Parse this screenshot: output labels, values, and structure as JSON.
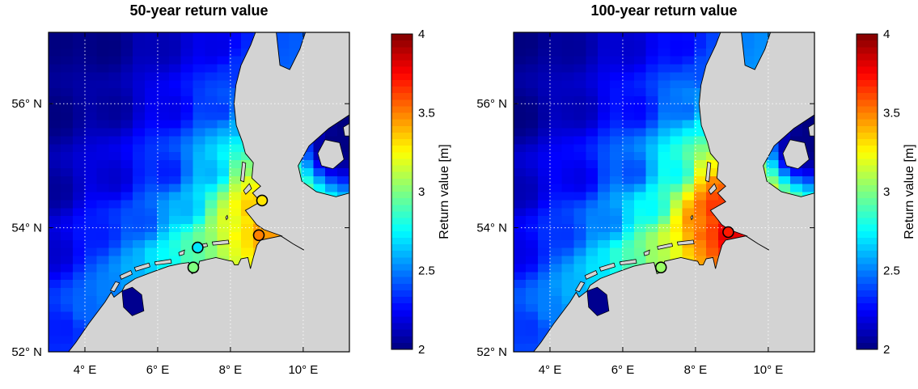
{
  "style": {
    "background": "#ffffff",
    "land_color": "#d3d3d3",
    "coast_color": "#000000",
    "gridline_color": "#ffffff",
    "lake_color": "#00008f",
    "colormap": "jet"
  },
  "chart_data": [
    {
      "type": "heatmap",
      "title": "50-year return value",
      "lon_range": [
        3.0,
        11.27
      ],
      "lat_range": [
        52.0,
        57.15
      ],
      "x_ticks": [
        {
          "lon": 4,
          "label": "4° E"
        },
        {
          "lon": 6,
          "label": "6° E"
        },
        {
          "lon": 8,
          "label": "8° E"
        },
        {
          "lon": 10,
          "label": "10° E"
        }
      ],
      "y_ticks": [
        {
          "lat": 56,
          "label": "56° N"
        },
        {
          "lat": 54,
          "label": "54° N"
        },
        {
          "lat": 52,
          "label": "52° N"
        }
      ],
      "colorbar": {
        "label": "Return value [m]",
        "min": 2,
        "max": 4,
        "tick_values": [
          4,
          3.5,
          3,
          2.5,
          2
        ],
        "tick_labels": [
          "4",
          "3.5",
          "3",
          "2.5",
          "2"
        ]
      },
      "field_points": [
        [
          3.2,
          57.0,
          2.0
        ],
        [
          4.6,
          56.9,
          2.0
        ],
        [
          6.2,
          56.9,
          2.1
        ],
        [
          7.6,
          56.9,
          2.2
        ],
        [
          3.2,
          55.8,
          2.0
        ],
        [
          4.8,
          55.9,
          2.05
        ],
        [
          6.4,
          55.9,
          2.2
        ],
        [
          7.7,
          55.9,
          2.35
        ],
        [
          3.2,
          54.6,
          2.05
        ],
        [
          4.8,
          54.8,
          2.15
        ],
        [
          6.3,
          54.9,
          2.3
        ],
        [
          7.5,
          54.9,
          2.6
        ],
        [
          3.2,
          53.6,
          2.15
        ],
        [
          4.4,
          53.9,
          2.3
        ],
        [
          5.6,
          54.1,
          2.4
        ],
        [
          6.8,
          54.3,
          2.6
        ],
        [
          3.4,
          52.4,
          2.3
        ],
        [
          4.0,
          52.7,
          2.45
        ],
        [
          4.7,
          53.0,
          2.5
        ],
        [
          5.4,
          53.3,
          2.6
        ],
        [
          6.2,
          53.5,
          2.75
        ],
        [
          6.9,
          53.6,
          2.9
        ],
        [
          7.4,
          53.7,
          3.0
        ],
        [
          7.9,
          53.8,
          3.15
        ],
        [
          8.3,
          53.85,
          3.3
        ],
        [
          8.75,
          53.9,
          3.45
        ],
        [
          9.2,
          53.9,
          3.45
        ],
        [
          8.1,
          54.1,
          3.2
        ],
        [
          8.5,
          54.3,
          3.35
        ],
        [
          8.7,
          54.5,
          3.35
        ],
        [
          8.6,
          54.75,
          3.2
        ],
        [
          8.5,
          55.0,
          3.0
        ],
        [
          8.35,
          55.3,
          2.8
        ],
        [
          8.2,
          55.6,
          2.6
        ],
        [
          8.1,
          56.0,
          2.45
        ],
        [
          8.2,
          56.5,
          2.35
        ],
        [
          10.9,
          55.3,
          2.0
        ],
        [
          11.2,
          55.7,
          2.0
        ]
      ],
      "markers": [
        {
          "lon": 8.87,
          "lat": 54.44,
          "value": 3.3
        },
        {
          "lon": 8.78,
          "lat": 53.88,
          "value": 3.5
        },
        {
          "lon": 7.1,
          "lat": 53.68,
          "value": 2.7
        },
        {
          "lon": 6.98,
          "lat": 53.36,
          "value": 3.0
        }
      ]
    },
    {
      "type": "heatmap",
      "title": "100-year return value",
      "lon_range": [
        3.0,
        11.27
      ],
      "lat_range": [
        52.0,
        57.15
      ],
      "x_ticks": [
        {
          "lon": 4,
          "label": "4° E"
        },
        {
          "lon": 6,
          "label": "6° E"
        },
        {
          "lon": 8,
          "label": "8° E"
        },
        {
          "lon": 10,
          "label": "10° E"
        }
      ],
      "y_ticks": [
        {
          "lat": 56,
          "label": "56° N"
        },
        {
          "lat": 54,
          "label": "54° N"
        },
        {
          "lat": 52,
          "label": "52° N"
        }
      ],
      "colorbar": {
        "label": "Return value [m]",
        "min": 2,
        "max": 4,
        "tick_values": [
          4,
          3.5,
          3,
          2.5,
          2
        ],
        "tick_labels": [
          "4",
          "3.5",
          "3",
          "2.5",
          "2"
        ]
      },
      "field_points": [
        [
          3.2,
          57.0,
          2.0
        ],
        [
          4.6,
          56.9,
          2.05
        ],
        [
          6.2,
          56.9,
          2.15
        ],
        [
          7.6,
          56.9,
          2.25
        ],
        [
          3.2,
          55.8,
          2.0
        ],
        [
          4.8,
          55.9,
          2.1
        ],
        [
          6.4,
          55.9,
          2.25
        ],
        [
          7.7,
          55.9,
          2.45
        ],
        [
          3.2,
          54.6,
          2.1
        ],
        [
          4.8,
          54.8,
          2.2
        ],
        [
          6.3,
          54.9,
          2.4
        ],
        [
          7.5,
          54.9,
          2.75
        ],
        [
          3.2,
          53.6,
          2.2
        ],
        [
          4.4,
          53.9,
          2.35
        ],
        [
          5.6,
          54.1,
          2.5
        ],
        [
          6.8,
          54.3,
          2.75
        ],
        [
          3.4,
          52.4,
          2.35
        ],
        [
          4.0,
          52.7,
          2.5
        ],
        [
          4.7,
          53.0,
          2.6
        ],
        [
          5.4,
          53.3,
          2.7
        ],
        [
          6.2,
          53.5,
          2.9
        ],
        [
          6.9,
          53.6,
          3.05
        ],
        [
          7.4,
          53.7,
          3.2
        ],
        [
          7.9,
          53.8,
          3.4
        ],
        [
          8.3,
          53.85,
          3.6
        ],
        [
          8.75,
          53.9,
          3.8
        ],
        [
          9.2,
          53.9,
          3.8
        ],
        [
          8.1,
          54.1,
          3.5
        ],
        [
          8.5,
          54.3,
          3.65
        ],
        [
          8.7,
          54.5,
          3.65
        ],
        [
          8.6,
          54.75,
          3.5
        ],
        [
          8.5,
          55.0,
          3.25
        ],
        [
          8.35,
          55.3,
          3.0
        ],
        [
          8.2,
          55.6,
          2.75
        ],
        [
          8.1,
          56.0,
          2.55
        ],
        [
          8.2,
          56.5,
          2.4
        ],
        [
          10.9,
          55.3,
          2.0
        ],
        [
          11.2,
          55.7,
          2.0
        ]
      ],
      "markers": [
        {
          "lon": 8.9,
          "lat": 53.93,
          "value": 3.7
        },
        {
          "lon": 7.05,
          "lat": 53.36,
          "value": 3.05
        }
      ]
    }
  ]
}
